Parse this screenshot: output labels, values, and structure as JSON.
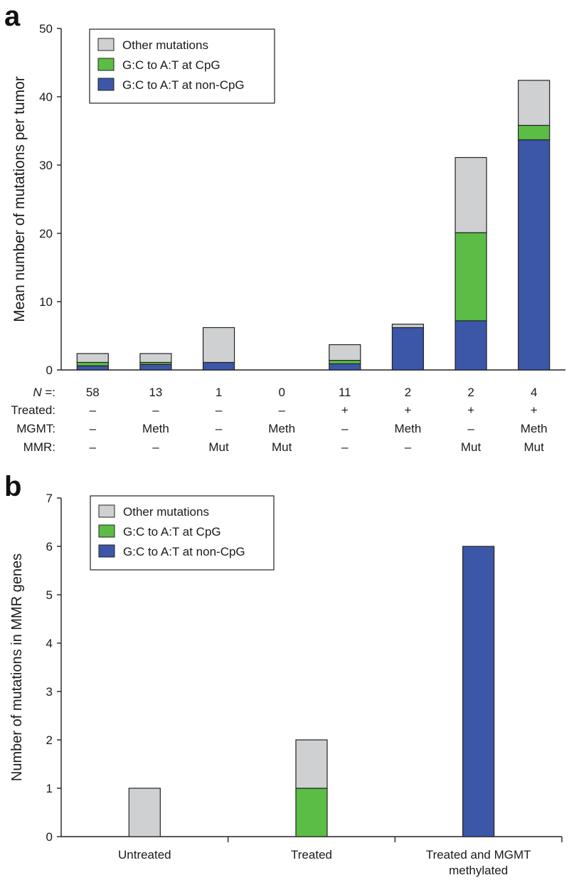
{
  "colors": {
    "other": "#cfd0d1",
    "cpg": "#5bbd45",
    "noncpg": "#3c57a8",
    "outline": "#222222"
  },
  "chart_data": [
    {
      "panel": "a",
      "type": "bar",
      "stacked": true,
      "ylabel": "Mean number of mutations per tumor",
      "ylim": [
        0,
        50
      ],
      "yticks": [
        0,
        10,
        20,
        30,
        40,
        50
      ],
      "legend": {
        "placement": "top-left",
        "entries": [
          {
            "key": "other",
            "label": "Other mutations"
          },
          {
            "key": "cpg",
            "label": "G:C to A:T at CpG"
          },
          {
            "key": "noncpg",
            "label": "G:C to A:T at non-CpG"
          }
        ]
      },
      "row_labels": {
        "n": "N =:",
        "treated": "Treated:",
        "mgmt": "MGMT:",
        "mmr": "MMR:"
      },
      "groups": [
        {
          "n": "58",
          "treated": "–",
          "mgmt": "–",
          "mmr": "–"
        },
        {
          "n": "13",
          "treated": "–",
          "mgmt": "Meth",
          "mmr": "–"
        },
        {
          "n": "1",
          "treated": "–",
          "mgmt": "–",
          "mmr": "Mut"
        },
        {
          "n": "0",
          "treated": "–",
          "mgmt": "Meth",
          "mmr": "Mut"
        },
        {
          "n": "11",
          "treated": "+",
          "mgmt": "–",
          "mmr": "–"
        },
        {
          "n": "2",
          "treated": "+",
          "mgmt": "Meth",
          "mmr": "–"
        },
        {
          "n": "2",
          "treated": "+",
          "mgmt": "–",
          "mmr": "Mut"
        },
        {
          "n": "4",
          "treated": "+",
          "mgmt": "Meth",
          "mmr": "Mut"
        }
      ],
      "series": [
        {
          "key": "noncpg",
          "name": "G:C to A:T at non-CpG",
          "values": [
            0.6,
            0.8,
            1.1,
            0,
            0.9,
            6.2,
            7.2,
            33.7
          ]
        },
        {
          "key": "cpg",
          "name": "G:C to A:T at CpG",
          "values": [
            0.5,
            0.3,
            0,
            0,
            0.5,
            0,
            12.9,
            2.1
          ]
        },
        {
          "key": "other",
          "name": "Other mutations",
          "values": [
            1.3,
            1.3,
            5.1,
            0,
            2.3,
            0.5,
            11.0,
            6.6
          ]
        }
      ]
    },
    {
      "panel": "b",
      "type": "bar",
      "stacked": true,
      "ylabel": "Number of mutations in MMR genes",
      "ylim": [
        0,
        7
      ],
      "yticks": [
        0,
        1,
        2,
        3,
        4,
        5,
        6,
        7
      ],
      "legend": {
        "placement": "top-left",
        "entries": [
          {
            "key": "other",
            "label": "Other mutations"
          },
          {
            "key": "cpg",
            "label": "G:C to A:T at CpG"
          },
          {
            "key": "noncpg",
            "label": "G:C to A:T at non-CpG"
          }
        ]
      },
      "categories": [
        [
          "Untreated"
        ],
        [
          "Treated"
        ],
        [
          "Treated and MGMT",
          "methylated"
        ]
      ],
      "series": [
        {
          "key": "noncpg",
          "name": "G:C to A:T at non-CpG",
          "values": [
            0,
            0,
            6
          ]
        },
        {
          "key": "cpg",
          "name": "G:C to A:T at CpG",
          "values": [
            0,
            1,
            0
          ]
        },
        {
          "key": "other",
          "name": "Other mutations",
          "values": [
            1,
            1,
            0
          ]
        }
      ]
    }
  ]
}
